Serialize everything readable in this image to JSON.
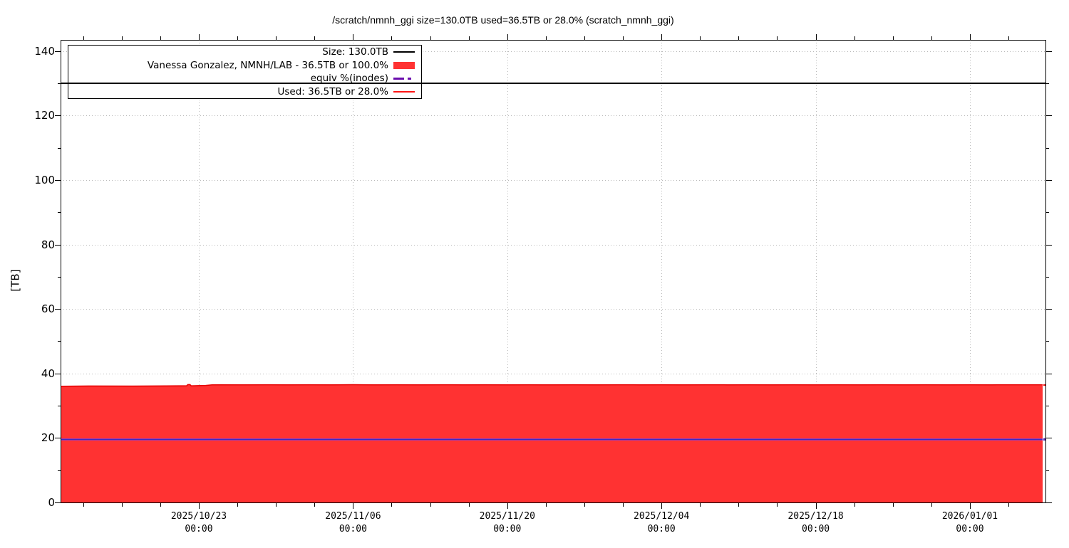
{
  "title": "/scratch/nmnh_ggi size=130.0TB used=36.5TB or 28.0% (scratch_nmnh_ggi)",
  "y_axis": {
    "label": "[TB]",
    "ticks": [
      0,
      20,
      40,
      60,
      80,
      100,
      120,
      140
    ],
    "minor_ticks": [
      10,
      30,
      50,
      70,
      90,
      110,
      130
    ]
  },
  "x_axis": {
    "ticks": [
      {
        "date": "2025/10/23",
        "time": "00:00"
      },
      {
        "date": "2025/11/06",
        "time": "00:00"
      },
      {
        "date": "2025/11/20",
        "time": "00:00"
      },
      {
        "date": "2025/12/04",
        "time": "00:00"
      },
      {
        "date": "2025/12/18",
        "time": "00:00"
      },
      {
        "date": "2026/01/01",
        "time": "00:00"
      }
    ]
  },
  "legend": {
    "entries": [
      {
        "label": "Size: 130.0TB",
        "sample": "line-black",
        "color": "#000000"
      },
      {
        "label": "Vanessa Gonzalez, NMNH/LAB - 36.5TB or 100.0%",
        "sample": "box-red",
        "color": "#ff3232"
      },
      {
        "label": "equiv %(inodes)",
        "sample": "dash-purple",
        "color": "#6a0dad"
      },
      {
        "label": "Used: 36.5TB or 28.0%",
        "sample": "line-red",
        "color": "#ff1414"
      }
    ]
  },
  "chart_data": {
    "type": "area",
    "title": "/scratch/nmnh_ggi size=130.0TB used=36.5TB or 28.0% (scratch_nmnh_ggi)",
    "ylabel": "[TB]",
    "ylim": [
      0,
      143.5
    ],
    "grid": true,
    "x_unit": "days since 2025/10/09 00:00",
    "x_major_tick_days": [
      14,
      28,
      42,
      56,
      70,
      84
    ],
    "x_minor_interval_days": 3.5,
    "x_range_days": [
      1.45,
      90.9
    ],
    "series": [
      {
        "name": "Size: 130.0TB",
        "type": "hline",
        "color": "#000000",
        "value": 130.0
      },
      {
        "name": "Vanessa Gonzalez, NMNH/LAB - 36.5TB or 100.0%",
        "type": "filled-area",
        "fill": "#ff3232",
        "stroke": "#e60000",
        "points": [
          [
            1.45,
            36.05
          ],
          [
            4,
            36.1
          ],
          [
            8,
            36.08
          ],
          [
            11.0,
            36.12
          ],
          [
            12.2,
            36.18
          ],
          [
            12.9,
            36.2
          ],
          [
            13.0,
            36.55
          ],
          [
            13.2,
            36.55
          ],
          [
            13.3,
            36.18
          ],
          [
            13.9,
            36.22
          ],
          [
            14.6,
            36.28
          ],
          [
            15.2,
            36.45
          ],
          [
            16,
            36.5
          ],
          [
            18,
            36.45
          ],
          [
            20,
            36.5
          ],
          [
            22,
            36.46
          ],
          [
            24,
            36.5
          ],
          [
            26,
            36.48
          ],
          [
            28,
            36.52
          ],
          [
            30,
            36.47
          ],
          [
            32,
            36.5
          ],
          [
            34,
            36.46
          ],
          [
            36,
            36.5
          ],
          [
            38,
            36.48
          ],
          [
            40,
            36.51
          ],
          [
            42,
            36.47
          ],
          [
            44,
            36.5
          ],
          [
            46,
            36.46
          ],
          [
            48,
            36.5
          ],
          [
            50,
            36.48
          ],
          [
            52,
            36.51
          ],
          [
            54,
            36.47
          ],
          [
            56,
            36.5
          ],
          [
            58,
            36.46
          ],
          [
            60,
            36.5
          ],
          [
            62,
            36.48
          ],
          [
            64,
            36.51
          ],
          [
            66,
            36.47
          ],
          [
            68,
            36.5
          ],
          [
            70,
            36.46
          ],
          [
            72,
            36.5
          ],
          [
            74,
            36.48
          ],
          [
            76,
            36.51
          ],
          [
            78,
            36.47
          ],
          [
            80,
            36.5
          ],
          [
            82,
            36.46
          ],
          [
            84,
            36.5
          ],
          [
            86,
            36.48
          ],
          [
            88,
            36.5
          ],
          [
            90.6,
            36.5
          ]
        ]
      },
      {
        "name": "equiv %(inodes)",
        "type": "hline-dashed",
        "color": "#6a0dad",
        "value": 19.6,
        "x_span_days": [
          1.45,
          90.6
        ]
      },
      {
        "name": "Used: 36.5TB or 28.0%",
        "type": "line",
        "color": "#e60000",
        "value": 36.5
      }
    ]
  }
}
